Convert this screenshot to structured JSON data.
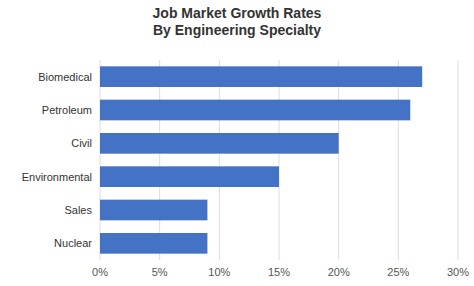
{
  "chart_data": {
    "type": "bar",
    "orientation": "horizontal",
    "title": "Job Market Growth Rates\nBy Engineering Specialty",
    "categories": [
      "Nuclear",
      "Sales",
      "Environmental",
      "Civil",
      "Petroleum",
      "Biomedical"
    ],
    "values": [
      0.09,
      0.09,
      0.15,
      0.2,
      0.26,
      0.27
    ],
    "color": "#4472C4",
    "xlim": [
      0,
      0.3
    ],
    "xticks": [
      {
        "value": 0,
        "label": "0%"
      },
      {
        "value": 0.05,
        "label": "5%"
      },
      {
        "value": 0.1,
        "label": "10%"
      },
      {
        "value": 0.15,
        "label": "15%"
      },
      {
        "value": 0.2,
        "label": "20%"
      },
      {
        "value": 0.25,
        "label": "25%"
      },
      {
        "value": 0.3,
        "label": "30%"
      }
    ],
    "grid": true
  }
}
